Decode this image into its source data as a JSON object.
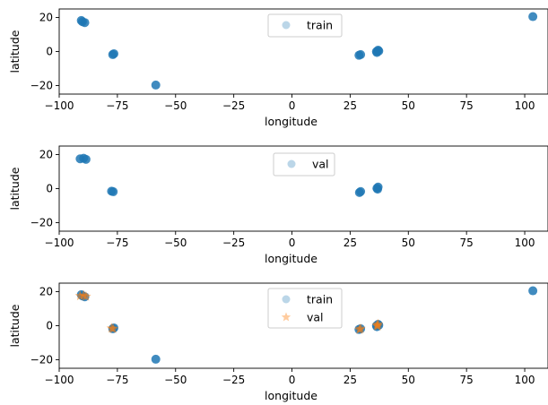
{
  "colors": {
    "train": "#1f77b4",
    "val_series_in_val_plot": "#1f77b4",
    "val_series_in_combined_plot": "#ff7f0e",
    "legend_swatch_alpha": 0.3
  },
  "chart_data": [
    {
      "type": "scatter",
      "xlabel": "longitude",
      "ylabel": "latitude",
      "xlim": [
        -100,
        110
      ],
      "ylim": [
        -25,
        25
      ],
      "xticks": [
        "−100",
        "−75",
        "−50",
        "−25",
        "0",
        "25",
        "50",
        "75",
        "100"
      ],
      "yticks": [
        "−20",
        "0",
        "20"
      ],
      "grid": false,
      "legend_position": "top-center",
      "series": [
        {
          "name": "train",
          "marker": "circle",
          "points": [
            {
              "x": -90,
              "y": 17.5
            },
            {
              "x": -89,
              "y": 17.0
            },
            {
              "x": -90.5,
              "y": 18.2
            },
            {
              "x": -77,
              "y": -1.8
            },
            {
              "x": -76.5,
              "y": -1.3
            },
            {
              "x": -58.5,
              "y": -19.7
            },
            {
              "x": 28.8,
              "y": -2.2
            },
            {
              "x": 29.5,
              "y": -1.8
            },
            {
              "x": 36.3,
              "y": 0.0
            },
            {
              "x": 37.0,
              "y": 0.8
            },
            {
              "x": 36.5,
              "y": -0.6
            },
            {
              "x": 37.3,
              "y": 0.3
            },
            {
              "x": 103.5,
              "y": 20.5
            }
          ]
        }
      ]
    },
    {
      "type": "scatter",
      "xlabel": "longitude",
      "ylabel": "latitude",
      "xlim": [
        -100,
        110
      ],
      "ylim": [
        -25,
        25
      ],
      "xticks": [
        "−100",
        "−75",
        "−50",
        "−25",
        "0",
        "25",
        "50",
        "75",
        "100"
      ],
      "yticks": [
        "−20",
        "0",
        "20"
      ],
      "grid": false,
      "legend_position": "top-center",
      "series": [
        {
          "name": "val",
          "marker": "circle",
          "points": [
            {
              "x": -91,
              "y": 17.5
            },
            {
              "x": -89.5,
              "y": 17.8
            },
            {
              "x": -88.5,
              "y": 17.2
            },
            {
              "x": -77.5,
              "y": -1.5
            },
            {
              "x": -76.8,
              "y": -1.8
            },
            {
              "x": 29.0,
              "y": -2.3
            },
            {
              "x": 29.5,
              "y": -1.7
            },
            {
              "x": 36.5,
              "y": 0.2
            },
            {
              "x": 37.0,
              "y": 0.9
            },
            {
              "x": 36.8,
              "y": -0.3
            }
          ]
        }
      ]
    },
    {
      "type": "scatter",
      "xlabel": "longitude",
      "ylabel": "latitude",
      "xlim": [
        -100,
        110
      ],
      "ylim": [
        -25,
        25
      ],
      "xticks": [
        "−100",
        "−75",
        "−50",
        "−25",
        "0",
        "25",
        "50",
        "75",
        "100"
      ],
      "yticks": [
        "−20",
        "0",
        "20"
      ],
      "grid": false,
      "legend_position": "top-center",
      "series": [
        {
          "name": "train",
          "marker": "circle",
          "points": [
            {
              "x": -90,
              "y": 17.5
            },
            {
              "x": -89,
              "y": 17.0
            },
            {
              "x": -90.5,
              "y": 18.2
            },
            {
              "x": -77,
              "y": -1.8
            },
            {
              "x": -76.5,
              "y": -1.3
            },
            {
              "x": -58.5,
              "y": -19.7
            },
            {
              "x": 28.8,
              "y": -2.2
            },
            {
              "x": 29.5,
              "y": -1.8
            },
            {
              "x": 36.3,
              "y": 0.0
            },
            {
              "x": 37.0,
              "y": 0.8
            },
            {
              "x": 36.5,
              "y": -0.6
            },
            {
              "x": 37.3,
              "y": 0.3
            },
            {
              "x": 103.5,
              "y": 20.5
            }
          ]
        },
        {
          "name": "val",
          "marker": "star",
          "points": [
            {
              "x": -91,
              "y": 17.5
            },
            {
              "x": -89.5,
              "y": 17.8
            },
            {
              "x": -88.5,
              "y": 17.2
            },
            {
              "x": -77.5,
              "y": -1.5
            },
            {
              "x": -76.8,
              "y": -1.8
            },
            {
              "x": 29.0,
              "y": -2.3
            },
            {
              "x": 29.5,
              "y": -1.7
            },
            {
              "x": 36.5,
              "y": 0.2
            },
            {
              "x": 37.0,
              "y": 0.9
            },
            {
              "x": 36.8,
              "y": -0.3
            }
          ]
        }
      ]
    }
  ]
}
